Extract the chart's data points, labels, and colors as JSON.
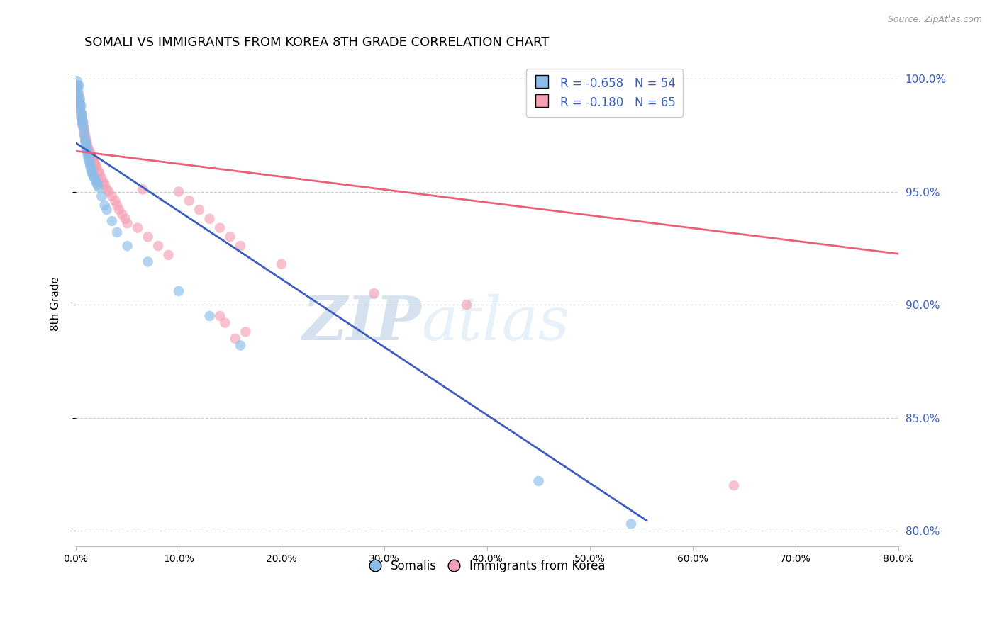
{
  "title": "SOMALI VS IMMIGRANTS FROM KOREA 8TH GRADE CORRELATION CHART",
  "source": "Source: ZipAtlas.com",
  "ylabel": "8th Grade",
  "ytick_labels": [
    "100.0%",
    "95.0%",
    "90.0%",
    "85.0%",
    "80.0%"
  ],
  "ytick_values": [
    1.0,
    0.95,
    0.9,
    0.85,
    0.8
  ],
  "xtick_values": [
    0.0,
    0.1,
    0.2,
    0.3,
    0.4,
    0.5,
    0.6,
    0.7,
    0.8
  ],
  "xtick_labels": [
    "0.0%",
    "10.0%",
    "20.0%",
    "30.0%",
    "40.0%",
    "50.0%",
    "60.0%",
    "70.0%",
    "80.0%"
  ],
  "xmin": 0.0,
  "xmax": 0.8,
  "ymin": 0.793,
  "ymax": 1.008,
  "legend_r1": "R = -0.658",
  "legend_n1": "N = 54",
  "legend_r2": "R = -0.180",
  "legend_n2": "N = 65",
  "color_somali": "#8BBDE8",
  "color_korea": "#F4A0B5",
  "color_somali_line": "#3A5FBF",
  "color_korea_line": "#E8607A",
  "color_right_axis": "#3A5FBF",
  "watermark_zip": "ZIP",
  "watermark_atlas": "atlas",
  "somali_line_x": [
    0.0,
    0.555
  ],
  "somali_line_y": [
    0.9715,
    0.8045
  ],
  "korea_line_x": [
    0.0,
    0.8
  ],
  "korea_line_y": [
    0.968,
    0.9225
  ],
  "somali_x": [
    0.001,
    0.002,
    0.003,
    0.002,
    0.001,
    0.003,
    0.004,
    0.003,
    0.004,
    0.005,
    0.004,
    0.005,
    0.006,
    0.005,
    0.006,
    0.007,
    0.006,
    0.007,
    0.008,
    0.008,
    0.009,
    0.009,
    0.01,
    0.01,
    0.01,
    0.011,
    0.011,
    0.012,
    0.012,
    0.013,
    0.013,
    0.014,
    0.014,
    0.015,
    0.015,
    0.016,
    0.017,
    0.018,
    0.019,
    0.02,
    0.021,
    0.022,
    0.025,
    0.028,
    0.03,
    0.035,
    0.04,
    0.05,
    0.07,
    0.1,
    0.13,
    0.16,
    0.45,
    0.54
  ],
  "somali_y": [
    0.999,
    0.997,
    0.997,
    0.995,
    0.993,
    0.993,
    0.991,
    0.99,
    0.989,
    0.988,
    0.987,
    0.985,
    0.984,
    0.983,
    0.982,
    0.981,
    0.98,
    0.979,
    0.977,
    0.975,
    0.973,
    0.972,
    0.971,
    0.97,
    0.969,
    0.968,
    0.967,
    0.966,
    0.965,
    0.964,
    0.963,
    0.962,
    0.961,
    0.96,
    0.959,
    0.958,
    0.957,
    0.956,
    0.955,
    0.954,
    0.953,
    0.952,
    0.948,
    0.944,
    0.942,
    0.937,
    0.932,
    0.926,
    0.919,
    0.906,
    0.895,
    0.882,
    0.822,
    0.803
  ],
  "korea_x": [
    0.001,
    0.001,
    0.002,
    0.002,
    0.003,
    0.003,
    0.004,
    0.004,
    0.005,
    0.005,
    0.006,
    0.006,
    0.007,
    0.007,
    0.008,
    0.008,
    0.009,
    0.009,
    0.01,
    0.01,
    0.011,
    0.011,
    0.012,
    0.013,
    0.014,
    0.015,
    0.016,
    0.017,
    0.018,
    0.019,
    0.02,
    0.022,
    0.023,
    0.025,
    0.027,
    0.028,
    0.03,
    0.032,
    0.035,
    0.038,
    0.04,
    0.042,
    0.045,
    0.048,
    0.05,
    0.06,
    0.065,
    0.07,
    0.08,
    0.09,
    0.1,
    0.11,
    0.12,
    0.13,
    0.14,
    0.15,
    0.16,
    0.2,
    0.29,
    0.38,
    0.14,
    0.145,
    0.165,
    0.64,
    0.155
  ],
  "korea_y": [
    0.997,
    0.995,
    0.993,
    0.992,
    0.99,
    0.989,
    0.988,
    0.986,
    0.985,
    0.984,
    0.983,
    0.981,
    0.98,
    0.979,
    0.978,
    0.976,
    0.975,
    0.974,
    0.973,
    0.972,
    0.971,
    0.97,
    0.969,
    0.968,
    0.967,
    0.966,
    0.965,
    0.964,
    0.963,
    0.962,
    0.961,
    0.959,
    0.958,
    0.956,
    0.954,
    0.953,
    0.951,
    0.95,
    0.948,
    0.946,
    0.944,
    0.942,
    0.94,
    0.938,
    0.936,
    0.934,
    0.951,
    0.93,
    0.926,
    0.922,
    0.95,
    0.946,
    0.942,
    0.938,
    0.934,
    0.93,
    0.926,
    0.918,
    0.905,
    0.9,
    0.895,
    0.892,
    0.888,
    0.82,
    0.885
  ]
}
